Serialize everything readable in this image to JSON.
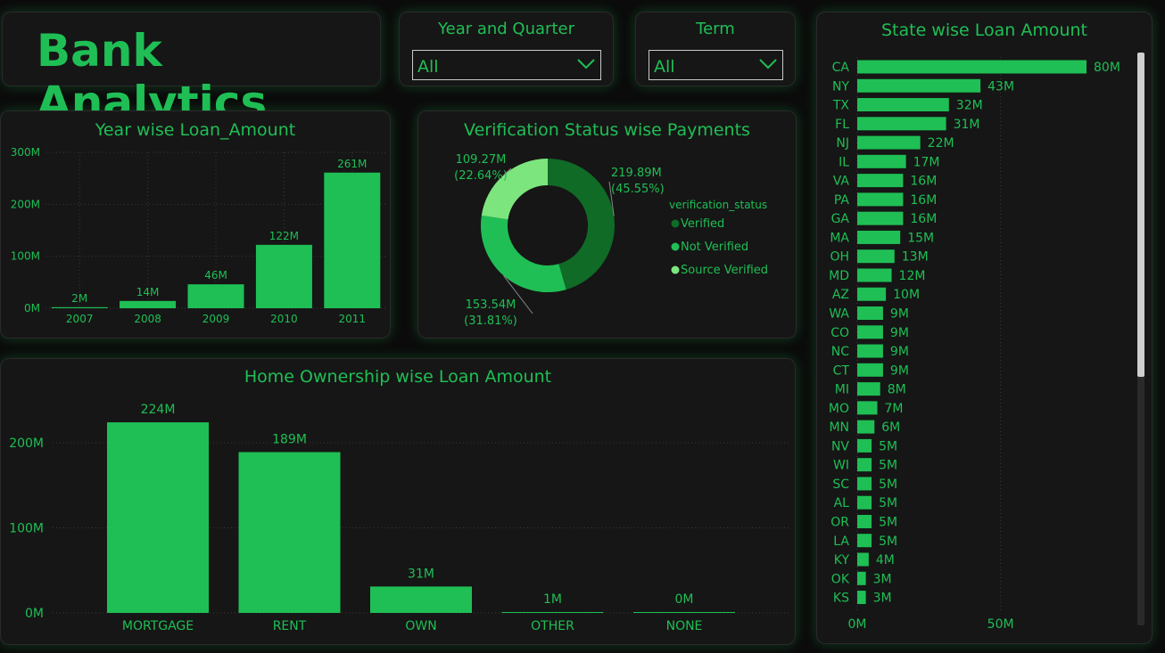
{
  "app": {
    "title": "Bank Analytics"
  },
  "filters": {
    "year_quarter": {
      "label": "Year and Quarter",
      "value": "All"
    },
    "term": {
      "label": "Term",
      "value": "All"
    }
  },
  "colors": {
    "accent": "#1fbf55",
    "dark_green": "#0f6b26",
    "light_green": "#7de57e",
    "background": "#161616"
  },
  "chart_data": [
    {
      "id": "year-wise",
      "type": "bar",
      "title": "Year wise Loan_Amount",
      "categories": [
        "2007",
        "2008",
        "2009",
        "2010",
        "2011"
      ],
      "values": [
        2,
        14,
        46,
        122,
        261
      ],
      "labels": [
        "2M",
        "14M",
        "46M",
        "122M",
        "261M"
      ],
      "ylim": [
        0,
        300
      ],
      "yticks": [
        "0M",
        "100M",
        "200M",
        "300M"
      ],
      "grid": true
    },
    {
      "id": "verification",
      "type": "pie",
      "title": "Verification Status wise Payments",
      "legend_title": "verification_status",
      "legend_position": "right",
      "slices": [
        {
          "name": "Verified",
          "value": 219.89,
          "label": "219.89M",
          "pct": "(45.55%)",
          "color": "#0f6b26"
        },
        {
          "name": "Not Verified",
          "value": 153.54,
          "label": "153.54M",
          "pct": "(31.81%)",
          "color": "#1fbf55"
        },
        {
          "name": "Source Verified",
          "value": 109.27,
          "label": "109.27M",
          "pct": "(22.64%)",
          "color": "#7de57e"
        }
      ]
    },
    {
      "id": "home-ownership",
      "type": "bar",
      "title": "Home Ownership wise Loan Amount",
      "categories": [
        "MORTGAGE",
        "RENT",
        "OWN",
        "OTHER",
        "NONE"
      ],
      "values": [
        224,
        189,
        31,
        1,
        0
      ],
      "labels": [
        "224M",
        "189M",
        "31M",
        "1M",
        "0M"
      ],
      "ylim": [
        0,
        250
      ],
      "yticks": [
        "0M",
        "100M",
        "200M"
      ],
      "grid": true
    },
    {
      "id": "state-wise",
      "type": "bar",
      "orientation": "horizontal",
      "title": "State wise Loan Amount",
      "categories": [
        "CA",
        "NY",
        "TX",
        "FL",
        "NJ",
        "IL",
        "VA",
        "PA",
        "GA",
        "MA",
        "OH",
        "MD",
        "AZ",
        "WA",
        "CO",
        "NC",
        "CT",
        "MI",
        "MO",
        "MN",
        "NV",
        "WI",
        "SC",
        "AL",
        "OR",
        "LA",
        "KY",
        "OK",
        "KS"
      ],
      "values": [
        80,
        43,
        32,
        31,
        22,
        17,
        16,
        16,
        16,
        15,
        13,
        12,
        10,
        9,
        9,
        9,
        9,
        8,
        7,
        6,
        5,
        5,
        5,
        5,
        5,
        5,
        4,
        3,
        3
      ],
      "labels": [
        "80M",
        "43M",
        "32M",
        "31M",
        "22M",
        "17M",
        "16M",
        "16M",
        "16M",
        "15M",
        "13M",
        "12M",
        "10M",
        "9M",
        "9M",
        "9M",
        "9M",
        "8M",
        "7M",
        "6M",
        "5M",
        "5M",
        "5M",
        "5M",
        "5M",
        "5M",
        "4M",
        "3M",
        "3M"
      ],
      "xticks": [
        "0M",
        "50M"
      ],
      "grid": true
    }
  ]
}
